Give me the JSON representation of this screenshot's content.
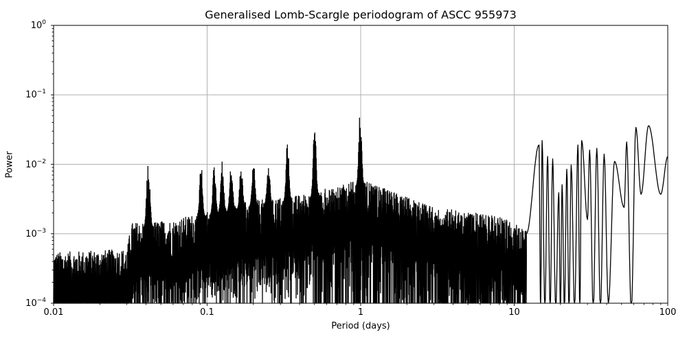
{
  "chart_data": {
    "type": "line",
    "title": "Generalised Lomb-Scargle periodogram of ASCC 955973",
    "xlabel": "Period (days)",
    "ylabel": "Power",
    "xscale": "log",
    "yscale": "log",
    "xlim": [
      0.01,
      100
    ],
    "ylim": [
      0.0001,
      1
    ],
    "grid": true,
    "legend": null,
    "line_color": "#000000",
    "grid_color": "#b0b0b0",
    "x_ticks": [
      {
        "value": 0.01,
        "label": "0.01"
      },
      {
        "value": 0.1,
        "label": "0.1"
      },
      {
        "value": 1,
        "label": "1"
      },
      {
        "value": 10,
        "label": "10"
      },
      {
        "value": 100,
        "label": "100"
      }
    ],
    "y_ticks": [
      {
        "value": 1,
        "base": "10",
        "exp": "0"
      },
      {
        "value": 0.1,
        "base": "10",
        "exp": "−1"
      },
      {
        "value": 0.01,
        "base": "10",
        "exp": "−2"
      },
      {
        "value": 0.001,
        "base": "10",
        "exp": "−3"
      },
      {
        "value": 0.0001,
        "base": "10",
        "exp": "−4"
      }
    ],
    "noise_envelope": [
      {
        "period": 0.01,
        "power": 0.00045
      },
      {
        "period": 0.03,
        "power": 0.0005
      },
      {
        "period": 0.032,
        "power": 0.0012
      },
      {
        "period": 0.06,
        "power": 0.0013
      },
      {
        "period": 0.1,
        "power": 0.0018
      },
      {
        "period": 0.2,
        "power": 0.0025
      },
      {
        "period": 0.4,
        "power": 0.003
      },
      {
        "period": 1.0,
        "power": 0.005
      },
      {
        "period": 3.0,
        "power": 0.002
      },
      {
        "period": 8.0,
        "power": 0.0015
      },
      {
        "period": 12.0,
        "power": 0.001
      }
    ],
    "notable_peaks": [
      {
        "period": 0.041,
        "power": 0.0098
      },
      {
        "period": 0.0415,
        "power": 0.0097
      },
      {
        "period": 0.091,
        "power": 0.011
      },
      {
        "period": 0.111,
        "power": 0.011
      },
      {
        "period": 0.125,
        "power": 0.012
      },
      {
        "period": 0.143,
        "power": 0.012
      },
      {
        "period": 0.166,
        "power": 0.011
      },
      {
        "period": 0.2,
        "power": 0.0115
      },
      {
        "period": 0.25,
        "power": 0.0115
      },
      {
        "period": 0.333,
        "power": 0.026
      },
      {
        "period": 0.5,
        "power": 0.047
      },
      {
        "period": 0.99,
        "power": 0.066
      },
      {
        "period": 14.5,
        "power": 0.019
      },
      {
        "period": 15.2,
        "power": 0.022
      },
      {
        "period": 16.5,
        "power": 0.013
      },
      {
        "period": 17.8,
        "power": 0.012
      },
      {
        "period": 19.5,
        "power": 0.0039
      },
      {
        "period": 20.5,
        "power": 0.0051
      },
      {
        "period": 22.0,
        "power": 0.0085
      },
      {
        "period": 23.5,
        "power": 0.0098
      },
      {
        "period": 26.0,
        "power": 0.019
      },
      {
        "period": 27.5,
        "power": 0.022
      },
      {
        "period": 31.0,
        "power": 0.016
      },
      {
        "period": 34.5,
        "power": 0.017
      },
      {
        "period": 38.5,
        "power": 0.014
      },
      {
        "period": 45.0,
        "power": 0.011
      },
      {
        "period": 54.0,
        "power": 0.021
      },
      {
        "period": 62.0,
        "power": 0.034
      },
      {
        "period": 75.0,
        "power": 0.036
      },
      {
        "period": 100.0,
        "power": 0.013
      }
    ],
    "notable_troughs": [
      {
        "period": 30.0,
        "power": 0.0016
      },
      {
        "period": 41.0,
        "power": 0.0001
      },
      {
        "period": 52.0,
        "power": 0.0024
      },
      {
        "period": 67.0,
        "power": 0.0037
      },
      {
        "period": 90.0,
        "power": 0.0037
      }
    ]
  }
}
